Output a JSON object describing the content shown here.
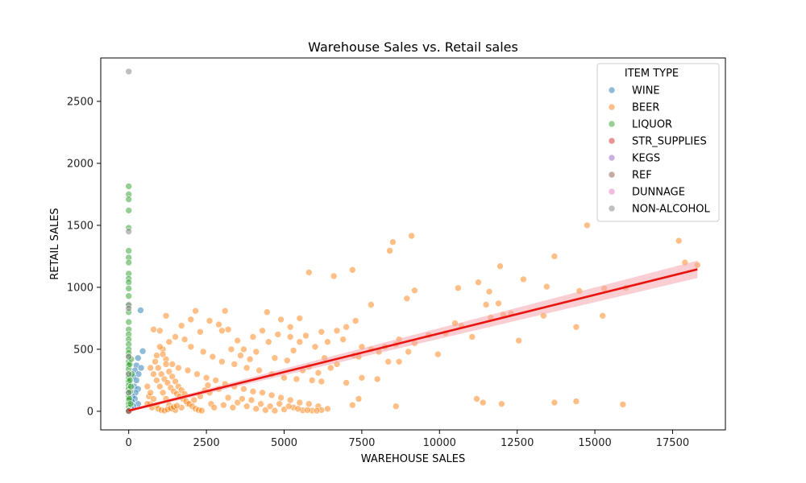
{
  "chart_data": {
    "type": "scatter",
    "title": "Warehouse Sales vs. Retail sales",
    "xlabel": "WAREHOUSE SALES",
    "ylabel": "RETAIL SALES",
    "xlim": [
      -900,
      19200
    ],
    "ylim": [
      -150,
      2850
    ],
    "xticks": [
      0,
      2500,
      5000,
      7500,
      10000,
      12500,
      15000,
      17500
    ],
    "yticks": [
      0,
      500,
      1000,
      1500,
      2000,
      2500
    ],
    "grid": false,
    "legend": {
      "title": "ITEM TYPE",
      "placement": "top-right"
    },
    "series": [
      {
        "name": "WINE",
        "color": "#1f77b4",
        "points": [
          [
            380,
            815
          ],
          [
            450,
            485
          ],
          [
            300,
            430
          ],
          [
            250,
            370
          ],
          [
            200,
            330
          ],
          [
            320,
            300
          ],
          [
            150,
            280
          ],
          [
            250,
            250
          ],
          [
            180,
            200
          ],
          [
            300,
            180
          ],
          [
            220,
            150
          ],
          [
            120,
            120
          ],
          [
            200,
            100
          ],
          [
            100,
            80
          ],
          [
            300,
            60
          ],
          [
            150,
            40
          ],
          [
            80,
            20
          ],
          [
            400,
            350
          ]
        ]
      },
      {
        "name": "BEER",
        "color": "#ff7f0e",
        "points": [
          [
            14750,
            1500
          ],
          [
            9100,
            1415
          ],
          [
            8500,
            1365
          ],
          [
            8400,
            1295
          ],
          [
            17700,
            1375
          ],
          [
            17900,
            1200
          ],
          [
            18300,
            1180
          ],
          [
            13700,
            1250
          ],
          [
            11950,
            1170
          ],
          [
            7200,
            1140
          ],
          [
            5800,
            1120
          ],
          [
            6600,
            1090
          ],
          [
            12700,
            1065
          ],
          [
            11250,
            1040
          ],
          [
            9200,
            975
          ],
          [
            10600,
            995
          ],
          [
            13450,
            1005
          ],
          [
            16000,
            995
          ],
          [
            15300,
            990
          ],
          [
            14500,
            970
          ],
          [
            11600,
            965
          ],
          [
            8950,
            910
          ],
          [
            11900,
            870
          ],
          [
            11500,
            860
          ],
          [
            7800,
            860
          ],
          [
            11650,
            755
          ],
          [
            12050,
            780
          ],
          [
            12300,
            790
          ],
          [
            13350,
            770
          ],
          [
            15250,
            770
          ],
          [
            10500,
            710
          ],
          [
            10700,
            690
          ],
          [
            14400,
            680
          ],
          [
            10200,
            630
          ],
          [
            11050,
            600
          ],
          [
            9650,
            615
          ],
          [
            12550,
            570
          ],
          [
            9200,
            550
          ],
          [
            8700,
            580
          ],
          [
            8600,
            540
          ],
          [
            8250,
            520
          ],
          [
            8050,
            480
          ],
          [
            9000,
            480
          ],
          [
            9950,
            460
          ],
          [
            8700,
            400
          ],
          [
            8350,
            400
          ],
          [
            7250,
            450
          ],
          [
            7500,
            520
          ],
          [
            7400,
            440
          ],
          [
            7800,
            500
          ],
          [
            7000,
            680
          ],
          [
            7300,
            730
          ],
          [
            6900,
            580
          ],
          [
            6200,
            640
          ],
          [
            6700,
            650
          ],
          [
            6400,
            560
          ],
          [
            6000,
            520
          ],
          [
            5500,
            560
          ],
          [
            5700,
            610
          ],
          [
            5200,
            600
          ],
          [
            4800,
            620
          ],
          [
            4300,
            650
          ],
          [
            4000,
            600
          ],
          [
            3500,
            570
          ],
          [
            3200,
            660
          ],
          [
            2900,
            700
          ],
          [
            2600,
            730
          ],
          [
            2150,
            810
          ],
          [
            3100,
            810
          ],
          [
            4450,
            800
          ],
          [
            1200,
            770
          ],
          [
            1000,
            650
          ],
          [
            800,
            660
          ],
          [
            1300,
            560
          ],
          [
            1500,
            600
          ],
          [
            1800,
            580
          ],
          [
            2000,
            520
          ],
          [
            2400,
            480
          ],
          [
            2700,
            440
          ],
          [
            3000,
            400
          ],
          [
            3400,
            380
          ],
          [
            3800,
            350
          ],
          [
            4200,
            330
          ],
          [
            4600,
            300
          ],
          [
            5000,
            270
          ],
          [
            5400,
            260
          ],
          [
            5900,
            250
          ],
          [
            6200,
            240
          ],
          [
            6500,
            350
          ],
          [
            7000,
            230
          ],
          [
            7500,
            270
          ],
          [
            8000,
            260
          ],
          [
            7400,
            100
          ],
          [
            7200,
            50
          ],
          [
            8600,
            40
          ],
          [
            11200,
            100
          ],
          [
            11400,
            70
          ],
          [
            12000,
            60
          ],
          [
            13700,
            70
          ],
          [
            14400,
            80
          ],
          [
            15900,
            55
          ],
          [
            900,
            450
          ],
          [
            1100,
            500
          ],
          [
            1200,
            420
          ],
          [
            1400,
            380
          ],
          [
            1600,
            350
          ],
          [
            1900,
            330
          ],
          [
            2200,
            300
          ],
          [
            2500,
            270
          ],
          [
            2800,
            250
          ],
          [
            3100,
            220
          ],
          [
            3400,
            200
          ],
          [
            3700,
            180
          ],
          [
            4000,
            160
          ],
          [
            4300,
            150
          ],
          [
            4600,
            130
          ],
          [
            4900,
            110
          ],
          [
            5200,
            90
          ],
          [
            5500,
            70
          ],
          [
            5800,
            60
          ],
          [
            6100,
            40
          ],
          [
            6400,
            20
          ],
          [
            700,
            350
          ],
          [
            800,
            300
          ],
          [
            900,
            250
          ],
          [
            1000,
            200
          ],
          [
            1100,
            150
          ],
          [
            1200,
            100
          ],
          [
            1300,
            50
          ],
          [
            1400,
            20
          ],
          [
            1500,
            10
          ],
          [
            1700,
            30
          ],
          [
            1900,
            60
          ],
          [
            2100,
            90
          ],
          [
            2300,
            120
          ],
          [
            2600,
            150
          ],
          [
            2900,
            180
          ],
          [
            3200,
            110
          ],
          [
            3500,
            70
          ],
          [
            3800,
            40
          ],
          [
            4100,
            20
          ],
          [
            4400,
            10
          ],
          [
            4700,
            5
          ],
          [
            5000,
            15
          ],
          [
            5300,
            30
          ],
          [
            5600,
            8
          ],
          [
            5900,
            5
          ],
          [
            6200,
            10
          ],
          [
            600,
            200
          ],
          [
            650,
            120
          ],
          [
            700,
            60
          ],
          [
            750,
            30
          ],
          [
            850,
            400
          ],
          [
            950,
            350
          ],
          [
            1050,
            300
          ],
          [
            1150,
            260
          ],
          [
            1250,
            230
          ],
          [
            1350,
            190
          ],
          [
            1450,
            160
          ],
          [
            1550,
            140
          ],
          [
            1650,
            120
          ],
          [
            1750,
            100
          ],
          [
            1850,
            80
          ],
          [
            1950,
            60
          ],
          [
            2050,
            40
          ],
          [
            2150,
            20
          ],
          [
            2250,
            10
          ],
          [
            2350,
            5
          ],
          [
            2450,
            170
          ],
          [
            2550,
            210
          ],
          [
            2650,
            60
          ],
          [
            2750,
            30
          ],
          [
            3050,
            50
          ],
          [
            3350,
            30
          ],
          [
            3650,
            100
          ],
          [
            3950,
            90
          ],
          [
            4250,
            60
          ],
          [
            4550,
            40
          ],
          [
            4850,
            60
          ],
          [
            5150,
            40
          ],
          [
            5450,
            20
          ],
          [
            5750,
            10
          ],
          [
            6050,
            5
          ],
          [
            1000,
            520
          ],
          [
            1100,
            460
          ],
          [
            1200,
            380
          ],
          [
            1300,
            320
          ],
          [
            1400,
            280
          ],
          [
            1500,
            240
          ],
          [
            1600,
            200
          ],
          [
            1700,
            170
          ],
          [
            1800,
            140
          ],
          [
            600,
            60
          ],
          [
            700,
            150
          ],
          [
            800,
            100
          ],
          [
            900,
            50
          ],
          [
            950,
            20
          ],
          [
            1050,
            10
          ],
          [
            1150,
            5
          ],
          [
            1250,
            15
          ],
          [
            1350,
            25
          ],
          [
            1450,
            35
          ],
          [
            1550,
            45
          ],
          [
            3000,
            650
          ],
          [
            3300,
            500
          ],
          [
            3600,
            450
          ],
          [
            3900,
            420
          ],
          [
            4100,
            480
          ],
          [
            4500,
            560
          ],
          [
            4700,
            430
          ],
          [
            5100,
            410
          ],
          [
            5300,
            490
          ],
          [
            5600,
            330
          ],
          [
            5800,
            360
          ],
          [
            6100,
            310
          ],
          [
            6300,
            430
          ],
          [
            6700,
            380
          ],
          [
            4900,
            740
          ],
          [
            5500,
            750
          ],
          [
            5200,
            680
          ],
          [
            3700,
            500
          ],
          [
            2300,
            640
          ],
          [
            2000,
            740
          ],
          [
            1700,
            690
          ]
        ]
      },
      {
        "name": "LIQUOR",
        "color": "#2ca02c",
        "points": [
          [
            0,
            1815
          ],
          [
            0,
            1750
          ],
          [
            0,
            1710
          ],
          [
            0,
            1620
          ],
          [
            0,
            1480
          ],
          [
            0,
            1295
          ],
          [
            0,
            1240
          ],
          [
            0,
            1200
          ],
          [
            0,
            1110
          ],
          [
            0,
            1070
          ],
          [
            0,
            1040
          ],
          [
            0,
            990
          ],
          [
            0,
            930
          ],
          [
            0,
            850
          ],
          [
            0,
            800
          ],
          [
            0,
            720
          ],
          [
            0,
            660
          ],
          [
            0,
            620
          ],
          [
            0,
            580
          ],
          [
            0,
            540
          ],
          [
            0,
            500
          ],
          [
            0,
            470
          ],
          [
            0,
            440
          ],
          [
            0,
            400
          ],
          [
            0,
            370
          ],
          [
            0,
            340
          ],
          [
            0,
            300
          ],
          [
            0,
            270
          ],
          [
            0,
            240
          ],
          [
            0,
            210
          ],
          [
            0,
            180
          ],
          [
            0,
            150
          ],
          [
            0,
            120
          ],
          [
            0,
            90
          ],
          [
            0,
            60
          ],
          [
            0,
            30
          ],
          [
            0,
            10
          ],
          [
            30,
            380
          ],
          [
            40,
            250
          ],
          [
            50,
            160
          ],
          [
            20,
            100
          ],
          [
            60,
            60
          ],
          [
            80,
            420
          ],
          [
            100,
            300
          ],
          [
            70,
            200
          ]
        ]
      },
      {
        "name": "STR_SUPPLIES",
        "color": "#d62728",
        "points": []
      },
      {
        "name": "KEGS",
        "color": "#9467bd",
        "points": []
      },
      {
        "name": "REF",
        "color": "#8c564b",
        "points": [
          [
            0,
            0
          ],
          [
            0,
            2
          ]
        ]
      },
      {
        "name": "DUNNAGE",
        "color": "#e377c2",
        "points": []
      },
      {
        "name": "NON-ALCOHOL",
        "color": "#7f7f7f",
        "points": [
          [
            0,
            2740
          ],
          [
            0,
            1450
          ],
          [
            0,
            860
          ],
          [
            0,
            830
          ],
          [
            0,
            440
          ],
          [
            0,
            300
          ],
          [
            0,
            150
          ]
        ]
      }
    ],
    "regression": {
      "color": "#e8140f",
      "band_color": "#f6a6ad",
      "x": [
        0,
        18300
      ],
      "y": [
        5,
        1145
      ],
      "ci_halfwidth": [
        10,
        70
      ]
    }
  }
}
